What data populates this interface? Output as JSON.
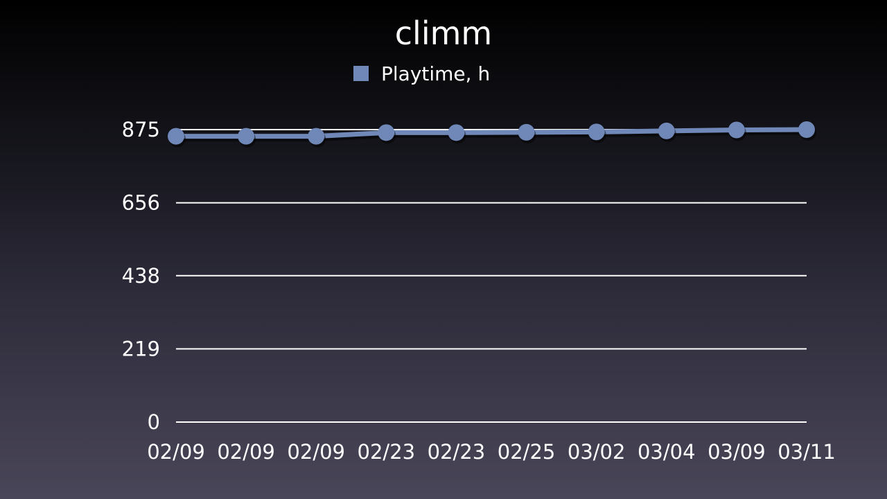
{
  "chart_data": {
    "type": "line",
    "title": "climm",
    "xlabel": "",
    "ylabel": "",
    "categories": [
      "02/09",
      "02/09",
      "02/09",
      "02/23",
      "02/23",
      "02/25",
      "03/02",
      "03/04",
      "03/09",
      "03/11"
    ],
    "y_ticks": [
      "0",
      "219",
      "438",
      "656",
      "875"
    ],
    "ylim": [
      0,
      875
    ],
    "grid": true,
    "legend_position": "top",
    "series": [
      {
        "name": "Playtime, h",
        "color": "#6f88b8",
        "values": [
          855,
          855,
          855,
          866,
          866,
          867,
          868,
          871,
          874,
          875
        ]
      }
    ]
  }
}
